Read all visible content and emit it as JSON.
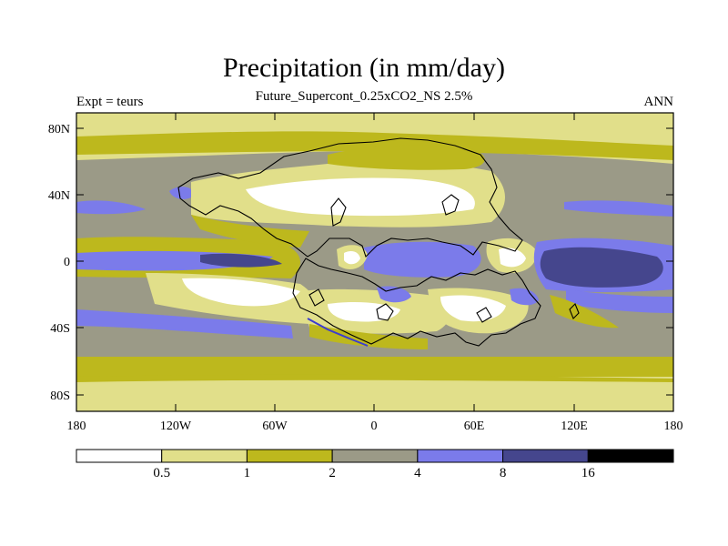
{
  "title": "Precipitation (in mm/day)",
  "subtitle": "Future_Supercont_0.25xCO2_NS 2.5%",
  "left_label": "Expt = teurs",
  "right_label": "ANN",
  "lat_ticks": [
    "80N",
    "40N",
    "0",
    "40S",
    "80S"
  ],
  "lon_ticks": [
    "180",
    "120W",
    "60W",
    "0",
    "60E",
    "120E",
    "180"
  ],
  "colorbar": {
    "colors": [
      "#ffffff",
      "#e1df8a",
      "#bdb81d",
      "#9b9a87",
      "#7b7bea",
      "#45468d",
      "#000000"
    ],
    "labels": [
      "0.5",
      "1",
      "2",
      "4",
      "8",
      "16"
    ]
  },
  "colors": {
    "c0": "#ffffff",
    "c1": "#e1df8a",
    "c2": "#bdb81d",
    "c3": "#9b9a87",
    "c4": "#7b7bea",
    "c5": "#45468d"
  }
}
